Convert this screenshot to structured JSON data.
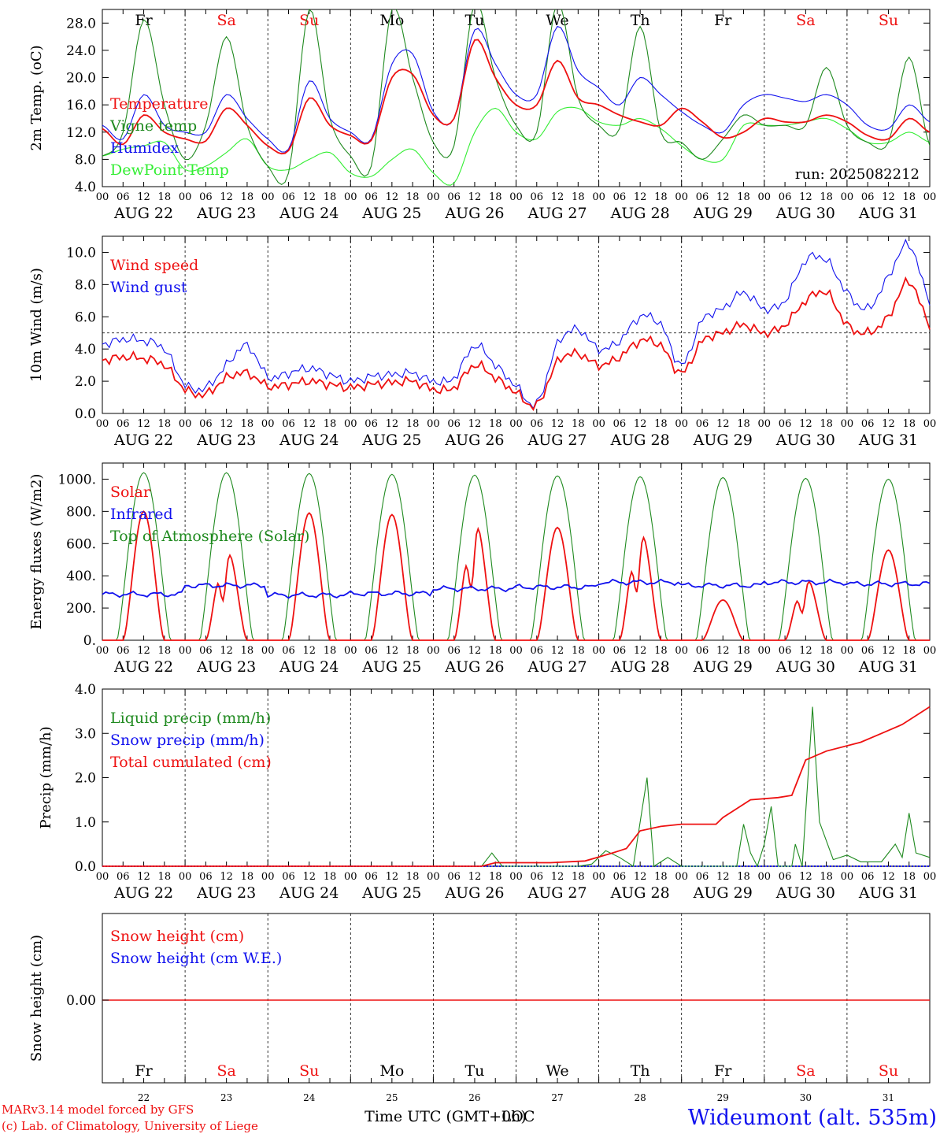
{
  "colors": {
    "red": "#ee1111",
    "green": "#1f8a1f",
    "lightgreen": "#33ee33",
    "blue": "#1111ee",
    "black": "#000000"
  },
  "days": [
    "22",
    "23",
    "24",
    "25",
    "26",
    "27",
    "28",
    "29",
    "30",
    "31"
  ],
  "day_names": [
    "Fr",
    "Sa",
    "Su",
    "Mo",
    "Tu",
    "We",
    "Th",
    "Fr",
    "Sa",
    "Su"
  ],
  "weekend": [
    false,
    true,
    true,
    false,
    false,
    false,
    false,
    false,
    true,
    true
  ],
  "date_labels": [
    "AUG 22",
    "AUG 23",
    "AUG 24",
    "AUG 25",
    "AUG 26",
    "AUG 27",
    "AUG 28",
    "AUG 29",
    "AUG 30",
    "AUG 31"
  ],
  "hour_ticks": [
    "00",
    "06",
    "12",
    "18"
  ],
  "hour_end_label": "00",
  "run_label": "run: 2025082212",
  "x_axis_label": "Time UTC (GMT+0h)",
  "x_axis_overlap_label": "LOC",
  "footer": {
    "model": "MARv3.14 model forced by GFS",
    "copyright": "(c) Lab. of Climatology, University of Liege",
    "station": "Wideumont (alt. 535m)"
  },
  "chart_data": [
    {
      "type": "line",
      "ylabel": "2m Temp. (oC)",
      "ylim": [
        4,
        30
      ],
      "yticks": [
        "4.0",
        "8.0",
        "12.0",
        "16.0",
        "20.0",
        "24.0",
        "28.0"
      ],
      "legend": [
        "Temperature",
        "Vigne temp",
        "Humidex",
        "DewPoint Temp"
      ],
      "x_hours": [
        0,
        6,
        12,
        18,
        24,
        30,
        36,
        42,
        48,
        54,
        60,
        66,
        72,
        78,
        84,
        90,
        96,
        102,
        108,
        114,
        120,
        126,
        132,
        138,
        144,
        150,
        156,
        162,
        168,
        174,
        180,
        186,
        192,
        198,
        204,
        210,
        216,
        222,
        228,
        234,
        240
      ],
      "series": [
        {
          "name": "Temperature",
          "color": "red",
          "values": [
            12.5,
            10.2,
            14.5,
            12.0,
            11.0,
            10.7,
            15.5,
            13.0,
            10.0,
            9.3,
            17.0,
            13.0,
            11.5,
            10.8,
            20.0,
            20.5,
            14.5,
            14.0,
            25.5,
            20.0,
            16.0,
            16.0,
            22.5,
            17.0,
            16.0,
            14.5,
            13.5,
            13.0,
            15.5,
            13.5,
            11.2,
            12.0,
            14.0,
            13.5,
            13.5,
            14.5,
            13.5,
            11.5,
            11.0,
            14.0,
            12.0
          ]
        },
        {
          "name": "Vigne temp",
          "color": "green",
          "values": [
            8.5,
            12.0,
            28.5,
            16.0,
            8.0,
            13.0,
            26.0,
            13.0,
            7.0,
            6.0,
            30.0,
            14.0,
            8.5,
            7.0,
            30.0,
            20.0,
            10.5,
            10.0,
            31.0,
            20.0,
            13.0,
            12.0,
            31.0,
            17.0,
            13.0,
            12.5,
            27.5,
            12.0,
            10.5,
            8.0,
            11.0,
            14.5,
            13.0,
            13.0,
            13.0,
            21.5,
            13.0,
            10.5,
            10.5,
            23.0,
            10.0
          ]
        },
        {
          "name": "Humidex",
          "color": "blue",
          "values": [
            13.0,
            11.0,
            17.5,
            13.0,
            12.0,
            12.0,
            17.5,
            14.0,
            11.0,
            9.5,
            19.5,
            14.0,
            12.0,
            11.0,
            22.0,
            23.5,
            15.0,
            14.0,
            27.0,
            22.0,
            17.5,
            17.5,
            27.5,
            21.0,
            18.5,
            16.0,
            20.0,
            17.5,
            15.0,
            13.0,
            12.0,
            16.0,
            17.5,
            17.0,
            16.5,
            17.5,
            16.0,
            13.0,
            12.5,
            16.0,
            13.5
          ]
        },
        {
          "name": "DewPoint Temp",
          "color": "lightgreen",
          "values": [
            8.5,
            9.5,
            10.0,
            10.5,
            6.5,
            7.0,
            9.0,
            11.0,
            7.0,
            6.5,
            8.0,
            9.0,
            6.0,
            5.5,
            8.0,
            9.5,
            6.0,
            4.5,
            12.0,
            15.5,
            12.0,
            11.0,
            15.0,
            15.5,
            13.5,
            13.0,
            14.0,
            12.5,
            10.0,
            8.0,
            8.0,
            13.0,
            13.0,
            13.0,
            13.5,
            14.0,
            12.5,
            10.5,
            10.5,
            12.0,
            10.5
          ]
        }
      ]
    },
    {
      "type": "line",
      "ylabel": "10m Wind (m/s)",
      "ylim": [
        0,
        11
      ],
      "yticks": [
        "0.0",
        "2.0",
        "4.0",
        "6.0",
        "8.0",
        "10.0"
      ],
      "reference_line": 5,
      "legend": [
        "Wind speed",
        "Wind gust"
      ],
      "x_hours": [
        0,
        6,
        12,
        18,
        24,
        30,
        36,
        42,
        48,
        54,
        60,
        66,
        72,
        78,
        84,
        90,
        96,
        102,
        108,
        114,
        120,
        126,
        132,
        138,
        144,
        150,
        156,
        162,
        168,
        174,
        180,
        186,
        192,
        198,
        204,
        210,
        216,
        222,
        228,
        234,
        240
      ],
      "series": [
        {
          "name": "Wind speed",
          "color": "red",
          "values": [
            3.3,
            3.5,
            3.4,
            3.0,
            1.5,
            1.2,
            2.2,
            2.5,
            1.7,
            1.8,
            2.0,
            1.8,
            1.6,
            1.8,
            1.9,
            2.0,
            1.5,
            1.6,
            3.0,
            2.2,
            1.3,
            0.5,
            3.2,
            3.7,
            3.0,
            3.5,
            4.5,
            4.2,
            2.5,
            4.5,
            5.0,
            5.5,
            5.0,
            5.5,
            7.0,
            7.5,
            5.5,
            5.0,
            6.0,
            8.2,
            5.5
          ]
        },
        {
          "name": "Wind gust",
          "color": "blue",
          "values": [
            4.3,
            4.6,
            4.5,
            4.0,
            1.8,
            1.6,
            3.0,
            4.2,
            2.3,
            2.5,
            2.8,
            2.4,
            2.0,
            2.3,
            2.4,
            2.5,
            2.0,
            2.2,
            4.2,
            3.0,
            1.7,
            0.6,
            4.3,
            5.2,
            4.0,
            4.5,
            6.0,
            5.5,
            3.0,
            5.8,
            6.5,
            7.5,
            6.5,
            7.0,
            9.5,
            9.5,
            7.5,
            6.5,
            8.5,
            10.5,
            7.0
          ]
        }
      ]
    },
    {
      "type": "line",
      "ylabel": "Energy fluxes (W/m2)",
      "ylim": [
        0,
        1100
      ],
      "yticks": [
        "0.",
        "200.",
        "400.",
        "600.",
        "800.",
        "1000."
      ],
      "legend": [
        "Solar",
        "Infrared",
        "Top of Atmosphere (Solar)"
      ],
      "solar_daily_peak": [
        800,
        580,
        790,
        780,
        760,
        700,
        700,
        250,
        400,
        560
      ],
      "toa_daily_peak": [
        1040,
        1040,
        1035,
        1030,
        1025,
        1020,
        1015,
        1010,
        1005,
        1000
      ],
      "infrared_daily": [
        285,
        340,
        280,
        290,
        320,
        330,
        360,
        340,
        360,
        350
      ],
      "series": [
        {
          "name": "Solar",
          "color": "red"
        },
        {
          "name": "Infrared",
          "color": "blue"
        },
        {
          "name": "Top of Atmosphere (Solar)",
          "color": "green"
        }
      ]
    },
    {
      "type": "line",
      "ylabel": "Precip (mm/h)",
      "ylim": [
        0,
        4
      ],
      "yticks": [
        "0.0",
        "1.0",
        "2.0",
        "3.0",
        "4.0"
      ],
      "legend": [
        "Liquid precip (mm/h)",
        "Snow precip (mm/h)",
        "Total cumulated (cm)"
      ],
      "series": [
        {
          "name": "Liquid precip (mm/h)",
          "color": "green",
          "points": [
            [
              0,
              0
            ],
            [
              110,
              0
            ],
            [
              113,
              0.3
            ],
            [
              116,
              0
            ],
            [
              138,
              0
            ],
            [
              142,
              0.05
            ],
            [
              146,
              0.35
            ],
            [
              150,
              0.2
            ],
            [
              154,
              0
            ],
            [
              158,
              2.0
            ],
            [
              160,
              0
            ],
            [
              164,
              0.2
            ],
            [
              168,
              0
            ],
            [
              184,
              0
            ],
            [
              186,
              0.95
            ],
            [
              188,
              0.3
            ],
            [
              190,
              0
            ],
            [
              192,
              0.5
            ],
            [
              194,
              1.35
            ],
            [
              196,
              0
            ],
            [
              200,
              0.0
            ],
            [
              201,
              0.5
            ],
            [
              203,
              0.0
            ],
            [
              206,
              3.6
            ],
            [
              208,
              1.0
            ],
            [
              212,
              0.15
            ],
            [
              216,
              0.25
            ],
            [
              220,
              0.1
            ],
            [
              226,
              0.1
            ],
            [
              230,
              0.5
            ],
            [
              232,
              0.2
            ],
            [
              234,
              1.2
            ],
            [
              236,
              0.3
            ],
            [
              240,
              0.2
            ]
          ]
        },
        {
          "name": "Snow precip (mm/h)",
          "color": "blue",
          "points": [
            [
              0,
              0
            ],
            [
              240,
              0
            ]
          ]
        },
        {
          "name": "Total cumulated (cm)",
          "color": "red",
          "points": [
            [
              0,
              0
            ],
            [
              110,
              0
            ],
            [
              114,
              0.08
            ],
            [
              130,
              0.08
            ],
            [
              140,
              0.12
            ],
            [
              148,
              0.3
            ],
            [
              150,
              0.35
            ],
            [
              152,
              0.4
            ],
            [
              156,
              0.8
            ],
            [
              162,
              0.9
            ],
            [
              168,
              0.95
            ],
            [
              178,
              0.95
            ],
            [
              180,
              1.1
            ],
            [
              184,
              1.3
            ],
            [
              188,
              1.5
            ],
            [
              196,
              1.55
            ],
            [
              200,
              1.6
            ],
            [
              202,
              2.0
            ],
            [
              204,
              2.4
            ],
            [
              210,
              2.6
            ],
            [
              220,
              2.8
            ],
            [
              226,
              3.0
            ],
            [
              232,
              3.2
            ],
            [
              240,
              3.6
            ]
          ]
        }
      ]
    },
    {
      "type": "line",
      "ylabel": "Snow height (cm)",
      "yticks": [
        "0.00"
      ],
      "legend": [
        "Snow height (cm)",
        "Snow height (cm W.E.)"
      ],
      "series": [
        {
          "name": "Snow height (cm)",
          "color": "red",
          "values": [
            0,
            0
          ]
        },
        {
          "name": "Snow height (cm W.E.)",
          "color": "blue",
          "values": [
            0,
            0
          ]
        }
      ]
    }
  ]
}
